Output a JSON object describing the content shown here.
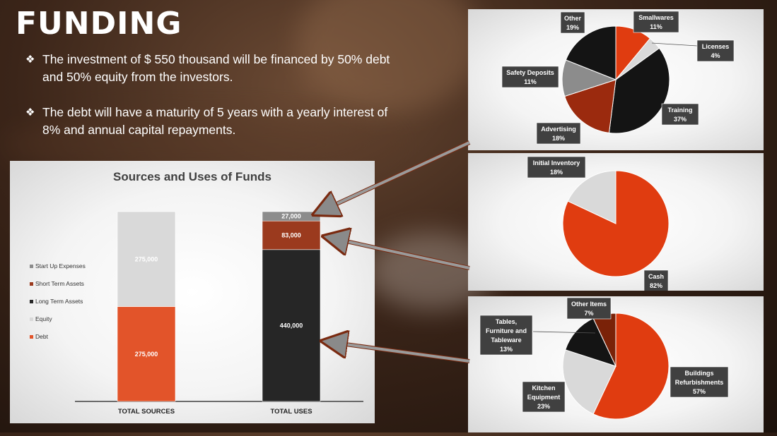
{
  "slide": {
    "title": "FUNDING",
    "bullets": [
      {
        "mark": "❖",
        "text": "The investment of $ 550 thousand will be financed by 50% debt and 50% equity from the investors."
      },
      {
        "mark": "❖",
        "text": "The debt will have a maturity of 5 years with a yearly interest of 8% and annual capital repayments."
      }
    ]
  },
  "colors": {
    "orange": "#E2542A",
    "dark": "#262626",
    "light": "#D9D9D9",
    "rust": "#9B3A1E",
    "gray": "#8C8C8C",
    "black": "#141414",
    "deep_red": "#7A2208"
  },
  "chart_data": [
    {
      "type": "bar",
      "stacked": true,
      "title": "Sources and Uses of Funds",
      "categories": [
        "TOTAL SOURCES",
        "TOTAL USES"
      ],
      "series": [
        {
          "name": "Debt",
          "values": [
            275000,
            0
          ],
          "color": "#E2542A"
        },
        {
          "name": "Equity",
          "values": [
            275000,
            0
          ],
          "color": "#D9D9D9"
        },
        {
          "name": "Long Term Assets",
          "values": [
            0,
            440000
          ],
          "color": "#262626"
        },
        {
          "name": "Short Term Assets",
          "values": [
            0,
            83000
          ],
          "color": "#9B3A1E"
        },
        {
          "name": "Start Up Expenses",
          "values": [
            0,
            27000
          ],
          "color": "#8C8C8C"
        }
      ],
      "data_labels": [
        {
          "series": "Debt",
          "category": "TOTAL SOURCES",
          "text": "275,000"
        },
        {
          "series": "Equity",
          "category": "TOTAL SOURCES",
          "text": "275,000"
        },
        {
          "series": "Long Term Assets",
          "category": "TOTAL USES",
          "text": "440,000"
        },
        {
          "series": "Short Term Assets",
          "category": "TOTAL USES",
          "text": "83,000"
        },
        {
          "series": "Start Up Expenses",
          "category": "TOTAL USES",
          "text": "27,000"
        }
      ],
      "legend_order": [
        "Start Up Expenses",
        "Short Term Assets",
        "Long Term Assets",
        "Equity",
        "Debt"
      ],
      "legend_position": "left",
      "ylim": [
        0,
        550000
      ]
    },
    {
      "type": "pie",
      "slices": [
        {
          "label": "Smallwares",
          "value": 11,
          "pct": "11%",
          "color": "#E03C10"
        },
        {
          "label": "Licenses",
          "value": 4,
          "pct": "4%",
          "color": "#D9D9D9"
        },
        {
          "label": "Training",
          "value": 37,
          "pct": "37%",
          "color": "#141414"
        },
        {
          "label": "Advertising",
          "value": 18,
          "pct": "18%",
          "color": "#9B2A0E"
        },
        {
          "label": "Safety Deposits",
          "value": 11,
          "pct": "11%",
          "color": "#8C8C8C"
        },
        {
          "label": "Other",
          "value": 19,
          "pct": "19%",
          "color": "#141414"
        }
      ]
    },
    {
      "type": "pie",
      "slices": [
        {
          "label": "Cash",
          "value": 82,
          "pct": "82%",
          "color": "#E03C10"
        },
        {
          "label": "Initial Inventory",
          "value": 18,
          "pct": "18%",
          "color": "#D9D9D9"
        }
      ]
    },
    {
      "type": "pie",
      "slices": [
        {
          "label": "Buildings Refurbishments",
          "value": 57,
          "pct": "57%",
          "color": "#E03C10"
        },
        {
          "label": "Kitchen Equipment",
          "value": 23,
          "pct": "23%",
          "color": "#D9D9D9"
        },
        {
          "label": "Tables, Furniture and Tableware",
          "value": 13,
          "pct": "13%",
          "color": "#141414"
        },
        {
          "label": "Other Items",
          "value": 7,
          "pct": "7%",
          "color": "#7A2208"
        }
      ]
    }
  ]
}
